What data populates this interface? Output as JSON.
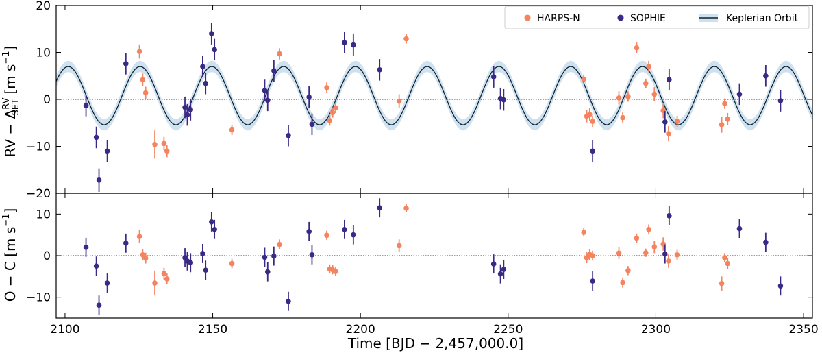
{
  "chart_data": {
    "type": "scatter",
    "colors": {
      "harps": "#f4845f",
      "sophie": "#3b2a85",
      "model": "#0b2230",
      "band": "#cfe0ef"
    },
    "legend": {
      "placement": "top-right",
      "entries": [
        "HARPS-N",
        "SOPHIE",
        "Keplerian Orbit"
      ]
    },
    "x_axis": {
      "label": "Time [BJD − 2,457,000.0]",
      "xlim": [
        2097,
        2353
      ],
      "ticks": [
        2100,
        2150,
        2200,
        2250,
        2300,
        2350
      ],
      "tick_labels": [
        "2100",
        "2150",
        "2200",
        "2250",
        "2300",
        "2350"
      ]
    },
    "top_panel": {
      "ylabel_main": "RV − Δ",
      "ylabel_sup": "RV",
      "ylabel_sub": "SET",
      "ylabel_unit_open": " [m s",
      "ylabel_unit_exp": "−1",
      "ylabel_unit_close": "]",
      "ylim": [
        -20,
        20
      ],
      "ticks": [
        -20,
        -10,
        0,
        10,
        20
      ],
      "tick_labels": [
        "−20",
        "−10",
        "0",
        "10",
        "20"
      ],
      "model": {
        "name": "Keplerian Orbit",
        "period": 24.3,
        "amplitude": 6.2,
        "offset": 0.8,
        "peak_time": 2125.4,
        "band_halfwidth": 1.2
      },
      "series": [
        {
          "name": "HARPS-N",
          "points": [
            [
              2125.2,
              10.2,
              1.5
            ],
            [
              2126.3,
              4.2,
              1.3
            ],
            [
              2127.3,
              1.4,
              1.3
            ],
            [
              2130.4,
              -9.6,
              3.0
            ],
            [
              2133.5,
              -9.4,
              1.4
            ],
            [
              2134.5,
              -11.0,
              1.3
            ],
            [
              2156.5,
              -6.5,
              1.1
            ],
            [
              2172.6,
              9.7,
              1.2
            ],
            [
              2188.6,
              2.5,
              1.1
            ],
            [
              2189.6,
              -4.5,
              1.1
            ],
            [
              2190.6,
              -2.8,
              1.1
            ],
            [
              2191.6,
              -1.8,
              1.1
            ],
            [
              2213.1,
              -0.4,
              1.5
            ],
            [
              2215.5,
              12.9,
              1.0
            ],
            [
              2275.6,
              4.3,
              1.0
            ],
            [
              2276.6,
              -3.6,
              1.3
            ],
            [
              2277.6,
              -3.2,
              1.3
            ],
            [
              2278.6,
              -4.7,
              1.2
            ],
            [
              2287.5,
              0.3,
              1.4
            ],
            [
              2288.8,
              -3.9,
              1.2
            ],
            [
              2290.6,
              0.6,
              1.1
            ],
            [
              2293.5,
              11.0,
              1.1
            ],
            [
              2296.6,
              3.4,
              1.0
            ],
            [
              2297.6,
              7.0,
              1.2
            ],
            [
              2299.5,
              1.1,
              1.5
            ],
            [
              2302.5,
              -2.4,
              1.6
            ],
            [
              2304.3,
              -7.3,
              1.6
            ],
            [
              2307.2,
              -4.7,
              1.2
            ],
            [
              2322.3,
              -5.4,
              1.7
            ],
            [
              2323.3,
              -0.9,
              1.1
            ],
            [
              2324.3,
              -4.2,
              1.3
            ]
          ]
        },
        {
          "name": "SOPHIE",
          "points": [
            [
              2107.1,
              -1.3,
              2.3
            ],
            [
              2110.6,
              -8.1,
              2.3
            ],
            [
              2111.5,
              -17.2,
              2.5
            ],
            [
              2114.3,
              -11.0,
              2.3
            ],
            [
              2120.6,
              7.6,
              2.3
            ],
            [
              2140.6,
              -1.7,
              2.3
            ],
            [
              2141.4,
              -3.3,
              2.3
            ],
            [
              2142.5,
              -2.2,
              2.3
            ],
            [
              2146.6,
              7.0,
              2.3
            ],
            [
              2147.6,
              3.4,
              2.3
            ],
            [
              2149.6,
              14.0,
              2.3
            ],
            [
              2150.6,
              10.6,
              2.3
            ],
            [
              2167.6,
              1.9,
              2.3
            ],
            [
              2168.6,
              -0.2,
              2.3
            ],
            [
              2170.7,
              6.1,
              2.3
            ],
            [
              2175.6,
              -7.7,
              2.3
            ],
            [
              2182.6,
              0.5,
              2.3
            ],
            [
              2183.6,
              -5.3,
              2.3
            ],
            [
              2194.6,
              12.1,
              2.3
            ],
            [
              2197.6,
              11.6,
              2.3
            ],
            [
              2206.5,
              6.3,
              2.3
            ],
            [
              2245.1,
              4.8,
              2.3
            ],
            [
              2247.4,
              0.2,
              2.3
            ],
            [
              2248.5,
              -0.1,
              2.3
            ],
            [
              2278.6,
              -11.0,
              2.3
            ],
            [
              2303.1,
              -4.8,
              2.3
            ],
            [
              2304.5,
              4.2,
              2.3
            ],
            [
              2328.3,
              1.1,
              2.3
            ],
            [
              2337.2,
              5.0,
              2.3
            ],
            [
              2342.2,
              -0.3,
              2.3
            ]
          ]
        }
      ]
    },
    "bottom_panel": {
      "ylabel_main": "O − C [m s",
      "ylabel_exp": "−1",
      "ylabel_close": "]",
      "ylim": [
        -15,
        15
      ],
      "ticks": [
        -10,
        0,
        10
      ],
      "tick_labels": [
        "−10",
        "0",
        "10"
      ],
      "series": [
        {
          "name": "HARPS-N",
          "points": [
            [
              2125.2,
              4.6,
              1.5
            ],
            [
              2126.3,
              0.2,
              1.3
            ],
            [
              2127.3,
              -0.6,
              1.3
            ],
            [
              2130.4,
              -6.6,
              3.0
            ],
            [
              2133.5,
              -4.3,
              1.4
            ],
            [
              2134.5,
              -5.6,
              1.3
            ],
            [
              2156.5,
              -1.9,
              1.1
            ],
            [
              2172.6,
              2.7,
              1.2
            ],
            [
              2188.6,
              4.9,
              1.1
            ],
            [
              2189.6,
              -3.2,
              1.1
            ],
            [
              2190.6,
              -3.4,
              1.1
            ],
            [
              2191.6,
              -3.8,
              1.1
            ],
            [
              2213.1,
              2.4,
              1.5
            ],
            [
              2215.5,
              11.4,
              1.0
            ],
            [
              2275.6,
              5.6,
              1.0
            ],
            [
              2276.6,
              -0.5,
              1.3
            ],
            [
              2277.6,
              0.3,
              1.3
            ],
            [
              2278.6,
              0.0,
              1.2
            ],
            [
              2287.5,
              0.6,
              1.4
            ],
            [
              2288.8,
              -6.5,
              1.2
            ],
            [
              2290.6,
              -3.6,
              1.1
            ],
            [
              2293.5,
              4.2,
              1.1
            ],
            [
              2296.6,
              0.7,
              1.0
            ],
            [
              2297.6,
              6.3,
              1.2
            ],
            [
              2299.5,
              2.1,
              1.5
            ],
            [
              2302.5,
              2.8,
              1.6
            ],
            [
              2304.3,
              -1.3,
              1.6
            ],
            [
              2307.2,
              0.2,
              1.2
            ],
            [
              2322.3,
              -6.7,
              1.7
            ],
            [
              2323.3,
              -0.5,
              1.1
            ],
            [
              2324.3,
              -1.9,
              1.3
            ]
          ]
        },
        {
          "name": "SOPHIE",
          "points": [
            [
              2107.1,
              2.0,
              2.3
            ],
            [
              2110.6,
              -2.5,
              2.3
            ],
            [
              2111.5,
              -11.9,
              2.3
            ],
            [
              2114.3,
              -6.6,
              2.3
            ],
            [
              2120.6,
              3.0,
              2.3
            ],
            [
              2140.6,
              -0.5,
              2.3
            ],
            [
              2141.4,
              -1.3,
              2.3
            ],
            [
              2142.5,
              -1.7,
              2.3
            ],
            [
              2146.6,
              0.5,
              2.3
            ],
            [
              2147.6,
              -3.5,
              2.3
            ],
            [
              2149.6,
              8.1,
              2.3
            ],
            [
              2150.6,
              6.3,
              2.3
            ],
            [
              2167.6,
              -0.4,
              2.3
            ],
            [
              2168.6,
              -3.9,
              2.3
            ],
            [
              2170.7,
              -0.1,
              2.3
            ],
            [
              2175.6,
              -11.0,
              2.3
            ],
            [
              2182.6,
              5.8,
              2.3
            ],
            [
              2183.6,
              0.2,
              2.3
            ],
            [
              2194.6,
              6.3,
              2.3
            ],
            [
              2197.6,
              5.0,
              2.3
            ],
            [
              2206.5,
              11.5,
              2.3
            ],
            [
              2245.1,
              -2.0,
              2.3
            ],
            [
              2247.4,
              -4.4,
              2.3
            ],
            [
              2248.5,
              -3.3,
              2.3
            ],
            [
              2278.6,
              -6.1,
              2.3
            ],
            [
              2303.1,
              0.4,
              2.3
            ],
            [
              2304.5,
              9.6,
              2.3
            ],
            [
              2328.3,
              6.5,
              2.3
            ],
            [
              2337.2,
              3.2,
              2.3
            ],
            [
              2342.2,
              -7.3,
              2.3
            ]
          ]
        }
      ]
    }
  }
}
